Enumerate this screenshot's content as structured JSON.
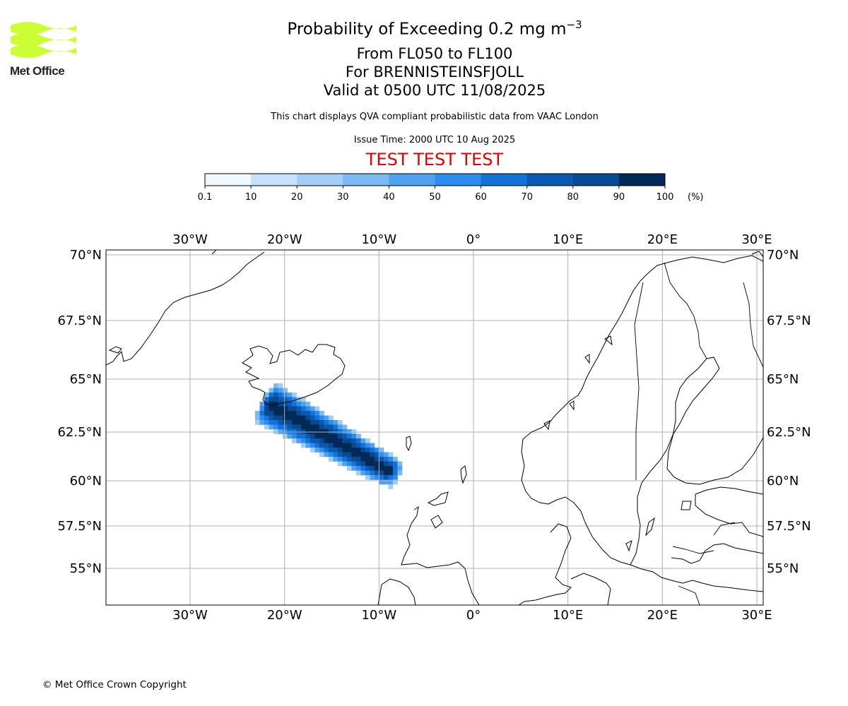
{
  "header": {
    "title_prefix": "Probability of Exceeding 0.2 mg m",
    "title_superscript": "−3",
    "levels": "From FL050 to FL100",
    "volcano": "For BRENNISTEINSFJOLL",
    "valid": "Valid at 0500 UTC 11/08/2025",
    "note": "This chart displays QVA compliant probabilistic data from VAAC London",
    "issue_time": "Issue Time: 2000 UTC 10 Aug 2025",
    "test_banner": "TEST TEST TEST"
  },
  "logo": {
    "text": "Met Office",
    "color": "#ccff33"
  },
  "footer": {
    "copyright": "© Met Office Crown Copyright"
  },
  "colorbar": {
    "ticks": [
      "0.1",
      "10",
      "20",
      "30",
      "40",
      "50",
      "60",
      "70",
      "80",
      "90",
      "100"
    ],
    "unit": "(%)",
    "colors": [
      "#f0f7ff",
      "#c6e2fb",
      "#a2cdf7",
      "#7bb9f5",
      "#4fa1f2",
      "#2b8eef",
      "#1272d6",
      "#0a58b0",
      "#064a92",
      "#032958"
    ]
  },
  "map": {
    "lon_labels": [
      "30°W",
      "20°W",
      "10°W",
      "0°",
      "10°E",
      "20°E",
      "30°E"
    ],
    "lon_values": [
      -30,
      -20,
      -10,
      0,
      10,
      20,
      30
    ],
    "lat_labels": [
      "70°N",
      "67.5°N",
      "65°N",
      "62.5°N",
      "60°N",
      "57.5°N",
      "55°N"
    ],
    "lat_values": [
      70,
      67.5,
      65,
      62.5,
      60,
      57.5,
      55
    ],
    "gridlines": true,
    "plume_axis": [
      [
        -22.0,
        63.9
      ],
      [
        -8.2,
        60.3
      ]
    ]
  }
}
